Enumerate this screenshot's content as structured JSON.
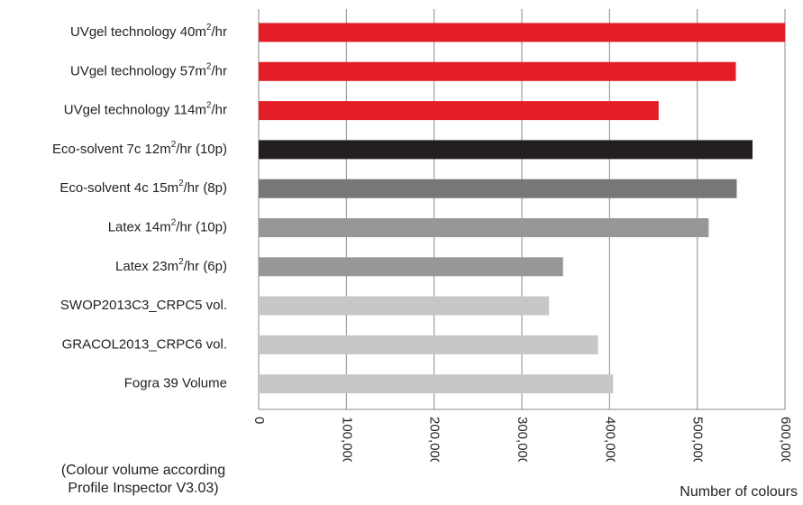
{
  "chart_data": {
    "type": "bar",
    "orientation": "horizontal",
    "title": "",
    "xlabel": "Number of colours",
    "ylabel": "",
    "xlim": [
      0,
      600000
    ],
    "grid": true,
    "categories": [
      "UVgel technology 40m²/hr",
      "UVgel technology 57m²/hr",
      "UVgel technology 114m²/hr",
      "Eco-solvent 7c 12m²/hr (10p)",
      "Eco-solvent 4c 15m²/hr (8p)",
      "Latex 14m²/hr (10p)",
      "Latex 23m²/hr (6p)",
      "SWOP2013C3_CRPC5 vol.",
      "GRACOL2013_CRPC6 vol.",
      "Fogra 39 Volume"
    ],
    "values": [
      600000,
      544000,
      456000,
      563000,
      545000,
      513000,
      347000,
      331000,
      387000,
      404000
    ],
    "colors": [
      "#e31e26",
      "#e31e26",
      "#e31e26",
      "#231f20",
      "#77777a",
      "#97979a",
      "#97979a",
      "#c6c7c9",
      "#c6c7c9",
      "#c6c7c9"
    ],
    "ticks": [
      "0",
      "100,000",
      "200,000",
      "300,000",
      "400,000",
      "500,000",
      "600,000"
    ],
    "tick_values": [
      0,
      100000,
      200000,
      300000,
      400000,
      500000,
      600000
    ]
  },
  "note": {
    "line1": "(Colour volume according",
    "line2": "Profile Inspector V3.03)"
  }
}
